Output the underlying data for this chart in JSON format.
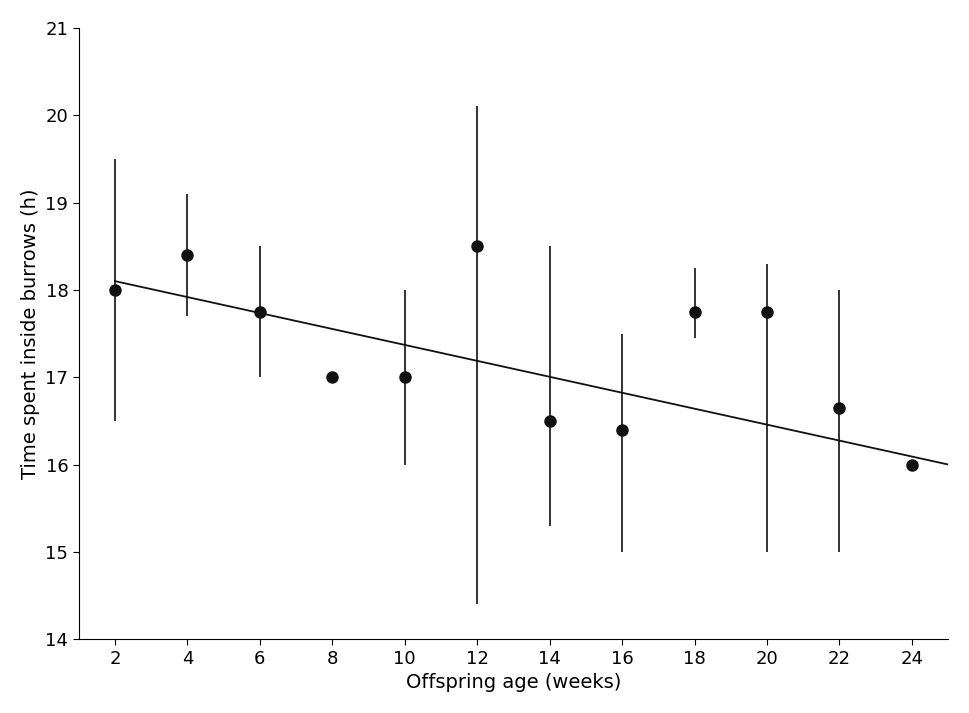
{
  "x": [
    2,
    4,
    6,
    8,
    10,
    12,
    14,
    16,
    18,
    20,
    22,
    24
  ],
  "y": [
    18.0,
    18.4,
    17.75,
    17.0,
    17.0,
    18.5,
    16.5,
    16.4,
    17.75,
    17.75,
    16.65,
    16.0
  ],
  "yerr_upper": [
    1.5,
    0.7,
    0.75,
    0.0,
    1.0,
    1.6,
    2.0,
    1.1,
    0.5,
    0.55,
    1.35,
    0.0
  ],
  "yerr_lower": [
    1.5,
    0.7,
    0.75,
    0.0,
    1.0,
    4.1,
    1.2,
    1.4,
    0.3,
    2.75,
    1.65,
    0.0
  ],
  "trend_x": [
    2,
    25
  ],
  "trend_y": [
    18.1,
    16.0
  ],
  "xlabel": "Offspring age (weeks)",
  "ylabel": "Time spent inside burrows (h)",
  "xlim": [
    1,
    25
  ],
  "ylim": [
    14,
    21
  ],
  "xticks": [
    2,
    4,
    6,
    8,
    10,
    12,
    14,
    16,
    18,
    20,
    22,
    24
  ],
  "yticks": [
    14,
    15,
    16,
    17,
    18,
    19,
    20,
    21
  ],
  "marker_size": 9,
  "marker_color": "#111111",
  "line_color": "#111111",
  "line_width": 1.3,
  "capsize": 3,
  "elinewidth": 1.2,
  "xlabel_fontsize": 14,
  "ylabel_fontsize": 14,
  "tick_labelsize": 13
}
